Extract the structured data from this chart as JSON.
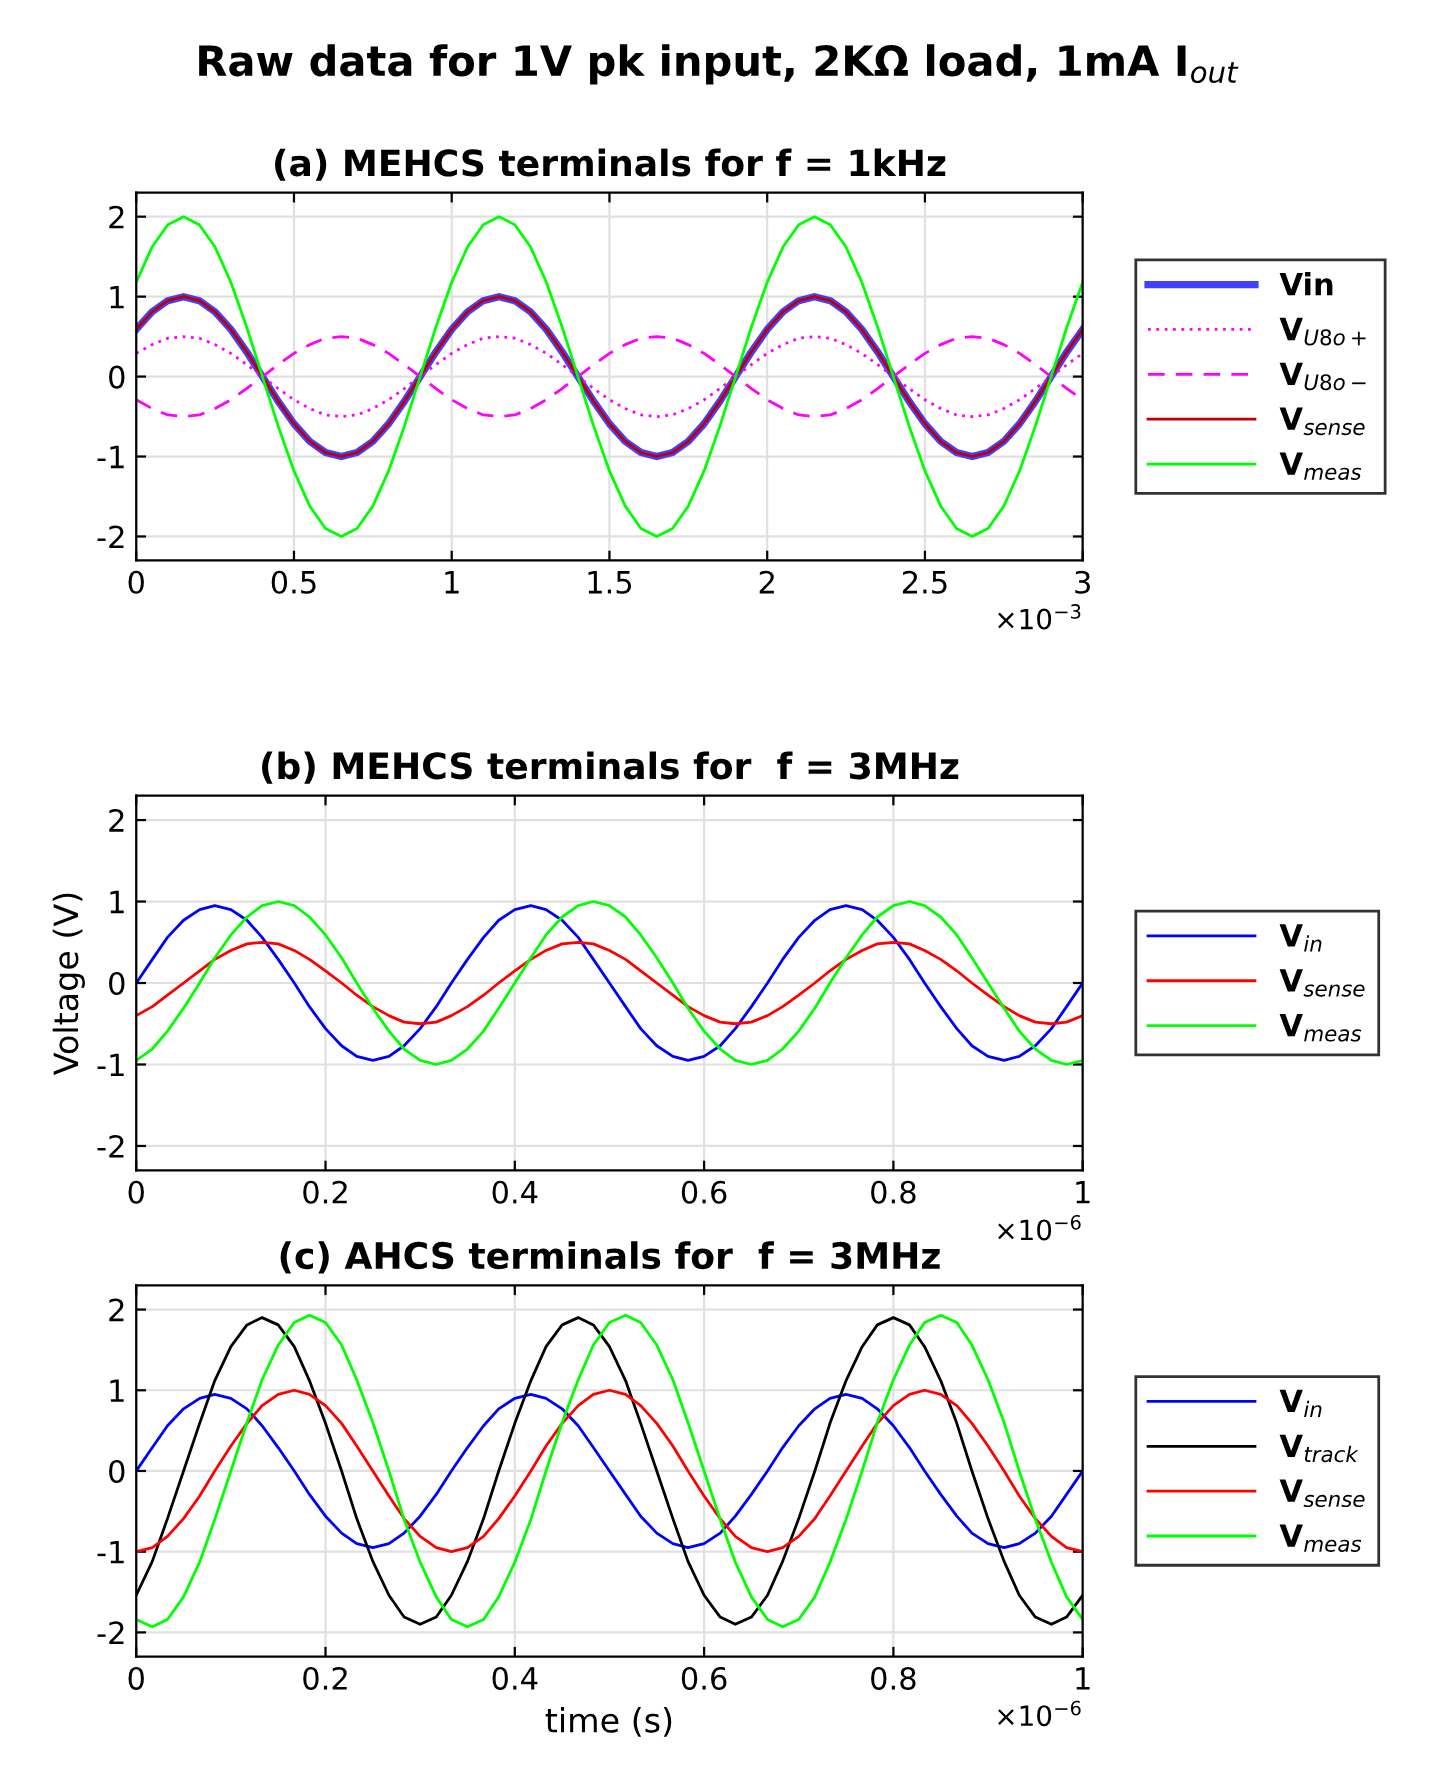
{
  "chart_data": [
    {
      "type": "line",
      "title": "Raw data for 1V pk input, 2KΩ load, 1mA I$_{out}$",
      "subtitle": "(a) MEHCS terminals for f = 1kHz",
      "x": [
        0,
        0.05,
        0.1,
        0.15,
        0.2,
        0.25,
        0.3,
        0.35,
        0.4,
        0.45,
        0.5,
        0.55,
        0.6,
        0.65,
        0.7,
        0.75,
        0.8,
        0.85,
        0.9,
        0.95,
        1,
        1.05,
        1.1,
        1.15,
        1.2,
        1.25,
        1.3,
        1.35,
        1.4,
        1.45,
        1.5,
        1.55,
        1.6,
        1.65,
        1.7,
        1.75,
        1.8,
        1.85,
        1.9,
        1.95,
        2,
        2.05,
        2.1,
        2.15,
        2.2,
        2.25,
        2.3,
        2.35,
        2.4,
        2.45,
        2.5,
        2.55,
        2.6,
        2.65,
        2.7,
        2.75,
        2.8,
        2.85,
        2.9,
        2.95,
        3
      ],
      "series": [
        {
          "name": "Vin",
          "color": "#4040ff",
          "line_style": "solid",
          "values": [
            0.59,
            0.81,
            0.95,
            1,
            0.95,
            0.81,
            0.59,
            0.31,
            0,
            -0.31,
            -0.59,
            -0.81,
            -0.95,
            -1,
            -0.95,
            -0.81,
            -0.59,
            -0.31,
            0,
            0.31,
            0.59,
            0.81,
            0.95,
            1,
            0.95,
            0.81,
            0.59,
            0.31,
            0,
            -0.31,
            -0.59,
            -0.81,
            -0.95,
            -1,
            -0.95,
            -0.81,
            -0.59,
            -0.31,
            0,
            0.31,
            0.59,
            0.81,
            0.95,
            1,
            0.95,
            0.81,
            0.59,
            0.31,
            0,
            -0.31,
            -0.59,
            -0.81,
            -0.95,
            -1,
            -0.95,
            -0.81,
            -0.59,
            -0.31,
            0,
            0.31,
            0.59
          ]
        },
        {
          "name": "V$_{U8o+}$",
          "color": "#ff00ff",
          "line_style": "dotted",
          "values": [
            0.29,
            0.4,
            0.48,
            0.5,
            0.48,
            0.4,
            0.29,
            0.15,
            0,
            -0.15,
            -0.29,
            -0.4,
            -0.48,
            -0.5,
            -0.48,
            -0.4,
            -0.29,
            -0.15,
            0,
            0.15,
            0.29,
            0.4,
            0.48,
            0.5,
            0.48,
            0.4,
            0.29,
            0.15,
            0,
            -0.15,
            -0.29,
            -0.4,
            -0.48,
            -0.5,
            -0.48,
            -0.4,
            -0.29,
            -0.15,
            0,
            0.15,
            0.29,
            0.4,
            0.48,
            0.5,
            0.48,
            0.4,
            0.29,
            0.15,
            0,
            -0.15,
            -0.29,
            -0.4,
            -0.48,
            -0.5,
            -0.48,
            -0.4,
            -0.29,
            -0.15,
            0,
            0.15,
            0.29
          ]
        },
        {
          "name": "V$_{U8o−}$",
          "color": "#ff00ff",
          "line_style": "dashed",
          "values": [
            -0.29,
            -0.4,
            -0.48,
            -0.5,
            -0.48,
            -0.4,
            -0.29,
            -0.15,
            0,
            0.15,
            0.29,
            0.4,
            0.48,
            0.5,
            0.48,
            0.4,
            0.29,
            0.15,
            0,
            -0.15,
            -0.29,
            -0.4,
            -0.48,
            -0.5,
            -0.48,
            -0.4,
            -0.29,
            -0.15,
            0,
            0.15,
            0.29,
            0.4,
            0.48,
            0.5,
            0.48,
            0.4,
            0.29,
            0.15,
            0,
            -0.15,
            -0.29,
            -0.4,
            -0.48,
            -0.5,
            -0.48,
            -0.4,
            -0.29,
            -0.15,
            0,
            0.15,
            0.29,
            0.4,
            0.48,
            0.5,
            0.48,
            0.4,
            0.29,
            0.15,
            0,
            -0.15,
            -0.29
          ]
        },
        {
          "name": "V$_{sense}$",
          "color": "#c00000",
          "line_style": "solid",
          "values": [
            0.59,
            0.81,
            0.95,
            1,
            0.95,
            0.81,
            0.59,
            0.31,
            0,
            -0.31,
            -0.59,
            -0.81,
            -0.95,
            -1,
            -0.95,
            -0.81,
            -0.59,
            -0.31,
            0,
            0.31,
            0.59,
            0.81,
            0.95,
            1,
            0.95,
            0.81,
            0.59,
            0.31,
            0,
            -0.31,
            -0.59,
            -0.81,
            -0.95,
            -1,
            -0.95,
            -0.81,
            -0.59,
            -0.31,
            0,
            0.31,
            0.59,
            0.81,
            0.95,
            1,
            0.95,
            0.81,
            0.59,
            0.31,
            0,
            -0.31,
            -0.59,
            -0.81,
            -0.95,
            -1,
            -0.95,
            -0.81,
            -0.59,
            -0.31,
            0,
            0.31,
            0.59
          ]
        },
        {
          "name": "V$_{meas}$",
          "color": "#00ff00",
          "line_style": "solid",
          "values": [
            1.18,
            1.62,
            1.9,
            2,
            1.9,
            1.62,
            1.18,
            0.62,
            0,
            -0.62,
            -1.18,
            -1.62,
            -1.9,
            -2,
            -1.9,
            -1.62,
            -1.18,
            -0.62,
            0,
            0.62,
            1.18,
            1.62,
            1.9,
            2,
            1.9,
            1.62,
            1.18,
            0.62,
            0,
            -0.62,
            -1.18,
            -1.62,
            -1.9,
            -2,
            -1.9,
            -1.62,
            -1.18,
            -0.62,
            0,
            0.62,
            1.18,
            1.62,
            1.9,
            2,
            1.9,
            1.62,
            1.18,
            0.62,
            0,
            -0.62,
            -1.18,
            -1.62,
            -1.9,
            -2,
            -1.9,
            -1.62,
            -1.18,
            -0.62,
            0,
            0.62,
            1.18
          ]
        }
      ],
      "xlim": [
        0,
        3
      ],
      "ylim": [
        -2.3,
        2.3
      ],
      "xticks": [
        0,
        0.5,
        1,
        1.5,
        2,
        2.5,
        3
      ],
      "yticks": [
        -2,
        -1,
        0,
        1,
        2
      ],
      "grid": true,
      "legend": "right",
      "annotations": [
        "×10$^{−3}$"
      ]
    },
    {
      "type": "line",
      "title": "(b) MEHCS terminals for  f = 3MHz",
      "ylabel": "Voltage (V)",
      "x": [
        0,
        0.017,
        0.033,
        0.05,
        0.067,
        0.083,
        0.1,
        0.117,
        0.133,
        0.15,
        0.167,
        0.183,
        0.2,
        0.217,
        0.233,
        0.25,
        0.267,
        0.283,
        0.3,
        0.317,
        0.333,
        0.35,
        0.367,
        0.383,
        0.4,
        0.417,
        0.433,
        0.45,
        0.467,
        0.483,
        0.5,
        0.517,
        0.533,
        0.55,
        0.567,
        0.583,
        0.6,
        0.617,
        0.633,
        0.65,
        0.667,
        0.683,
        0.7,
        0.717,
        0.733,
        0.75,
        0.767,
        0.783,
        0.8,
        0.817,
        0.833,
        0.85,
        0.867,
        0.883,
        0.9,
        0.917,
        0.933,
        0.95,
        0.967,
        0.983,
        1
      ],
      "series": [
        {
          "name": "V$_{in}$",
          "color": "#0000ff",
          "values": [
            0,
            0.29,
            0.56,
            0.77,
            0.9,
            0.95,
            0.9,
            0.77,
            0.56,
            0.29,
            0,
            -0.29,
            -0.56,
            -0.77,
            -0.9,
            -0.95,
            -0.9,
            -0.77,
            -0.56,
            -0.29,
            0,
            0.29,
            0.56,
            0.77,
            0.9,
            0.95,
            0.9,
            0.77,
            0.56,
            0.29,
            0,
            -0.29,
            -0.56,
            -0.77,
            -0.9,
            -0.95,
            -0.9,
            -0.77,
            -0.56,
            -0.29,
            0,
            0.29,
            0.56,
            0.77,
            0.9,
            0.95,
            0.9,
            0.77,
            0.56,
            0.29,
            0,
            -0.29,
            -0.56,
            -0.77,
            -0.9,
            -0.95,
            -0.9,
            -0.77,
            -0.56,
            -0.29,
            0
          ]
        },
        {
          "name": "V$_{sense}$",
          "color": "#ff0000",
          "values": [
            -0.4,
            -0.29,
            -0.15,
            0,
            0.15,
            0.29,
            0.4,
            0.48,
            0.5,
            0.48,
            0.4,
            0.29,
            0.15,
            0,
            -0.15,
            -0.29,
            -0.4,
            -0.48,
            -0.5,
            -0.48,
            -0.4,
            -0.29,
            -0.15,
            0,
            0.15,
            0.29,
            0.4,
            0.48,
            0.5,
            0.48,
            0.4,
            0.29,
            0.15,
            0,
            -0.15,
            -0.29,
            -0.4,
            -0.48,
            -0.5,
            -0.48,
            -0.4,
            -0.29,
            -0.15,
            0,
            0.15,
            0.29,
            0.4,
            0.48,
            0.5,
            0.48,
            0.4,
            0.29,
            0.15,
            0,
            -0.15,
            -0.29,
            -0.4,
            -0.48,
            -0.5,
            -0.48,
            -0.4
          ]
        },
        {
          "name": "V$_{meas}$",
          "color": "#00ff00",
          "values": [
            -0.95,
            -0.81,
            -0.59,
            -0.31,
            0,
            0.31,
            0.59,
            0.81,
            0.95,
            1,
            0.95,
            0.81,
            0.59,
            0.31,
            0,
            -0.31,
            -0.59,
            -0.81,
            -0.95,
            -1,
            -0.95,
            -0.81,
            -0.59,
            -0.31,
            0,
            0.31,
            0.59,
            0.81,
            0.95,
            1,
            0.95,
            0.81,
            0.59,
            0.31,
            0,
            -0.31,
            -0.59,
            -0.81,
            -0.95,
            -1,
            -0.95,
            -0.81,
            -0.59,
            -0.31,
            0,
            0.31,
            0.59,
            0.81,
            0.95,
            1,
            0.95,
            0.81,
            0.59,
            0.31,
            0,
            -0.31,
            -0.59,
            -0.81,
            -0.95,
            -1,
            -0.95
          ]
        }
      ],
      "xlim": [
        0,
        1
      ],
      "ylim": [
        -2.3,
        2.3
      ],
      "xticks": [
        0,
        0.2,
        0.4,
        0.6,
        0.8,
        1
      ],
      "yticks": [
        -2,
        -1,
        0,
        1,
        2
      ],
      "grid": true,
      "legend": "right",
      "annotations": [
        "×10$^{−6}$"
      ]
    },
    {
      "type": "line",
      "title": "(c) AHCS terminals for  f = 3MHz",
      "xlabel": "time (s)",
      "x": [
        0,
        0.017,
        0.033,
        0.05,
        0.067,
        0.083,
        0.1,
        0.117,
        0.133,
        0.15,
        0.167,
        0.183,
        0.2,
        0.217,
        0.233,
        0.25,
        0.267,
        0.283,
        0.3,
        0.317,
        0.333,
        0.35,
        0.367,
        0.383,
        0.4,
        0.417,
        0.433,
        0.45,
        0.467,
        0.483,
        0.5,
        0.517,
        0.533,
        0.55,
        0.567,
        0.583,
        0.6,
        0.617,
        0.633,
        0.65,
        0.667,
        0.683,
        0.7,
        0.717,
        0.733,
        0.75,
        0.767,
        0.783,
        0.8,
        0.817,
        0.833,
        0.85,
        0.867,
        0.883,
        0.9,
        0.917,
        0.933,
        0.95,
        0.967,
        0.983,
        1
      ],
      "series": [
        {
          "name": "V$_{in}$",
          "color": "#0000ff",
          "values": [
            0,
            0.29,
            0.56,
            0.77,
            0.9,
            0.95,
            0.9,
            0.77,
            0.56,
            0.29,
            0,
            -0.29,
            -0.56,
            -0.77,
            -0.9,
            -0.95,
            -0.9,
            -0.77,
            -0.56,
            -0.29,
            0,
            0.29,
            0.56,
            0.77,
            0.9,
            0.95,
            0.9,
            0.77,
            0.56,
            0.29,
            0,
            -0.29,
            -0.56,
            -0.77,
            -0.9,
            -0.95,
            -0.9,
            -0.77,
            -0.56,
            -0.29,
            0,
            0.29,
            0.56,
            0.77,
            0.9,
            0.95,
            0.9,
            0.77,
            0.56,
            0.29,
            0,
            -0.29,
            -0.56,
            -0.77,
            -0.9,
            -0.95,
            -0.9,
            -0.77,
            -0.56,
            -0.29,
            0
          ]
        },
        {
          "name": "V$_{track}$",
          "color": "#000000",
          "values": [
            -1.54,
            -1.12,
            -0.59,
            0,
            0.59,
            1.12,
            1.54,
            1.81,
            1.9,
            1.81,
            1.54,
            1.12,
            0.59,
            0,
            -0.59,
            -1.12,
            -1.54,
            -1.81,
            -1.9,
            -1.81,
            -1.54,
            -1.12,
            -0.59,
            0,
            0.59,
            1.12,
            1.54,
            1.81,
            1.9,
            1.81,
            1.54,
            1.12,
            0.59,
            0,
            -0.59,
            -1.12,
            -1.54,
            -1.81,
            -1.9,
            -1.81,
            -1.54,
            -1.12,
            -0.59,
            0,
            0.59,
            1.12,
            1.54,
            1.81,
            1.9,
            1.81,
            1.54,
            1.12,
            0.59,
            0,
            -0.59,
            -1.12,
            -1.54,
            -1.81,
            -1.9,
            -1.81,
            -1.54
          ]
        },
        {
          "name": "V$_{sense}$",
          "color": "#ff0000",
          "values": [
            -1,
            -0.95,
            -0.81,
            -0.59,
            -0.31,
            0,
            0.31,
            0.59,
            0.81,
            0.95,
            1,
            0.95,
            0.81,
            0.59,
            0.31,
            0,
            -0.31,
            -0.59,
            -0.81,
            -0.95,
            -1,
            -0.95,
            -0.81,
            -0.59,
            -0.31,
            0,
            0.31,
            0.59,
            0.81,
            0.95,
            1,
            0.95,
            0.81,
            0.59,
            0.31,
            0,
            -0.31,
            -0.59,
            -0.81,
            -0.95,
            -1,
            -0.95,
            -0.81,
            -0.59,
            -0.31,
            0,
            0.31,
            0.59,
            0.81,
            0.95,
            1,
            0.95,
            0.81,
            0.59,
            0.31,
            0,
            -0.31,
            -0.59,
            -0.81,
            -0.95,
            -1
          ]
        },
        {
          "name": "V$_{meas}$",
          "color": "#00ff00",
          "values": [
            -1.84,
            -1.93,
            -1.84,
            -1.56,
            -1.13,
            -0.6,
            0,
            0.6,
            1.13,
            1.56,
            1.84,
            1.93,
            1.84,
            1.56,
            1.13,
            0.6,
            0,
            -0.6,
            -1.13,
            -1.56,
            -1.84,
            -1.93,
            -1.84,
            -1.56,
            -1.13,
            -0.6,
            0,
            0.6,
            1.13,
            1.56,
            1.84,
            1.93,
            1.84,
            1.56,
            1.13,
            0.6,
            0,
            -0.6,
            -1.13,
            -1.56,
            -1.84,
            -1.93,
            -1.84,
            -1.56,
            -1.13,
            -0.6,
            0,
            0.6,
            1.13,
            1.56,
            1.84,
            1.93,
            1.84,
            1.56,
            1.13,
            0.6,
            0,
            -0.6,
            -1.13,
            -1.56,
            -1.84
          ]
        }
      ],
      "xlim": [
        0,
        1
      ],
      "ylim": [
        -2.3,
        2.3
      ],
      "xticks": [
        0,
        0.2,
        0.4,
        0.6,
        0.8,
        1
      ],
      "yticks": [
        -2,
        -1,
        0,
        1,
        2
      ],
      "grid": true,
      "legend": "right",
      "annotations": [
        "×10$^{−6}$"
      ]
    }
  ]
}
